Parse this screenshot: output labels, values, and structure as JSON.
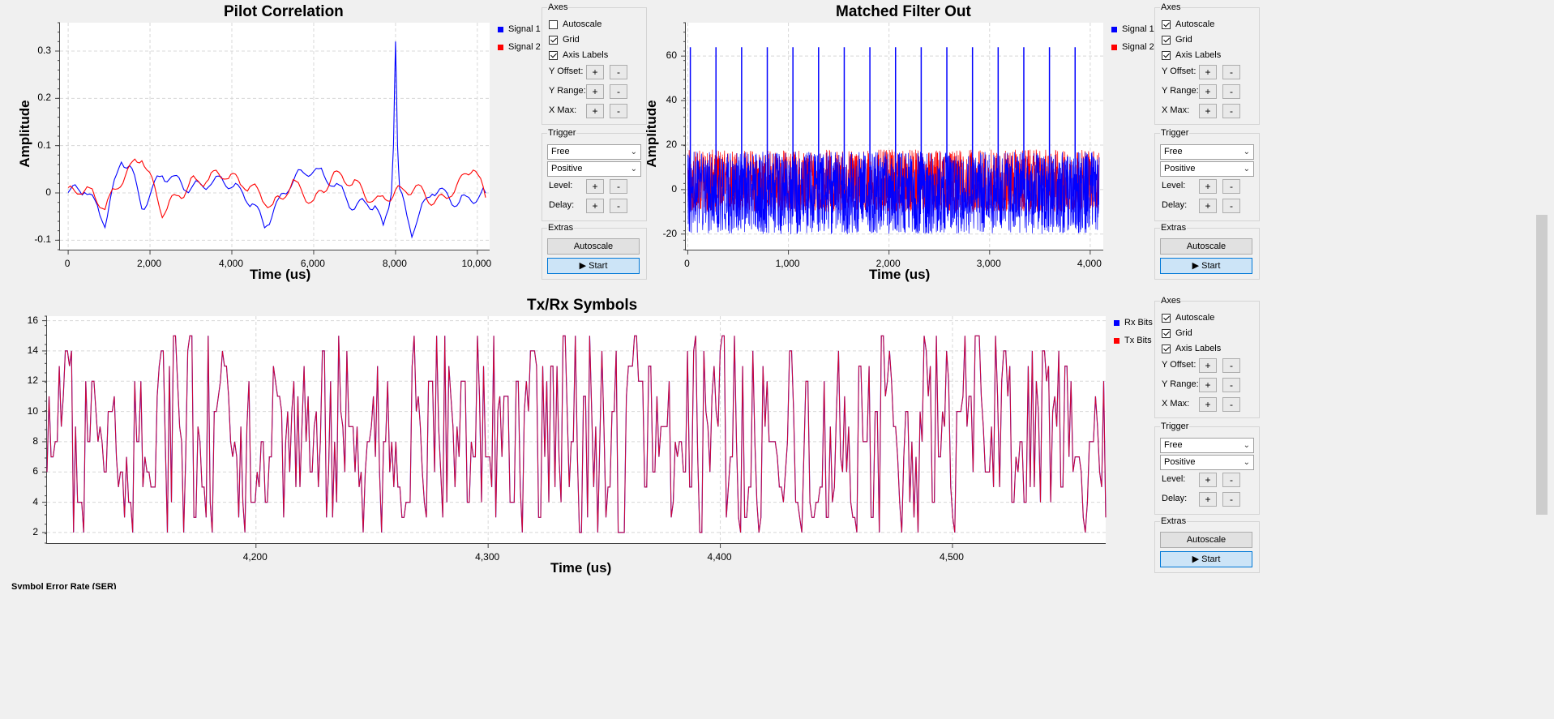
{
  "colors": {
    "signal1": "#0000ff",
    "signal2": "#ff0000",
    "grid": "#d8d8d8"
  },
  "plots": [
    {
      "title": "Pilot Correlation",
      "xlabel": "Time (us)",
      "ylabel": "Amplitude",
      "xticks": [
        "0",
        "2,000",
        "4,000",
        "6,000",
        "8,000",
        "10,000"
      ],
      "yticks": [
        "0.3",
        "0.2",
        "0.1",
        "0",
        "-0.1"
      ],
      "legend": [
        "Signal 1",
        "Signal 2"
      ]
    },
    {
      "title": "Matched Filter Out",
      "xlabel": "Time (us)",
      "ylabel": "Amplitude",
      "xticks": [
        "0",
        "1,000",
        "2,000",
        "3,000",
        "4,000"
      ],
      "yticks": [
        "60",
        "40",
        "20",
        "0",
        "-20"
      ],
      "legend": [
        "Signal 1",
        "Signal 2"
      ]
    },
    {
      "title": "Tx/Rx Symbols",
      "xlabel": "Time (us)",
      "ylabel": "",
      "xticks": [
        "4,200",
        "4,300",
        "4,400",
        "4,500"
      ],
      "yticks": [
        "16",
        "14",
        "12",
        "10",
        "8",
        "6",
        "4",
        "2"
      ],
      "legend": [
        "Rx Bits",
        "Tx Bits"
      ]
    }
  ],
  "controls": [
    {
      "axes_title": "Axes",
      "autoscale": "Autoscale",
      "autoscale_checked": false,
      "grid": "Grid",
      "grid_checked": true,
      "axis_labels": "Axis Labels",
      "axis_labels_checked": true,
      "y_offset": "Y Offset:",
      "y_range": "Y Range:",
      "x_max": "X Max:",
      "plus": "+",
      "minus": "-",
      "trigger_title": "Trigger",
      "trigger_mode": "Free",
      "trigger_slope": "Positive",
      "level": "Level:",
      "delay": "Delay:",
      "extras_title": "Extras",
      "autoscale_button": "Autoscale",
      "start_button": "Start"
    },
    {
      "axes_title": "Axes",
      "autoscale": "Autoscale",
      "autoscale_checked": true,
      "grid": "Grid",
      "grid_checked": true,
      "axis_labels": "Axis Labels",
      "axis_labels_checked": true,
      "y_offset": "Y Offset:",
      "y_range": "Y Range:",
      "x_max": "X Max:",
      "plus": "+",
      "minus": "-",
      "trigger_title": "Trigger",
      "trigger_mode": "Free",
      "trigger_slope": "Positive",
      "level": "Level:",
      "delay": "Delay:",
      "extras_title": "Extras",
      "autoscale_button": "Autoscale",
      "start_button": "Start"
    },
    {
      "axes_title": "Axes",
      "autoscale": "Autoscale",
      "autoscale_checked": true,
      "grid": "Grid",
      "grid_checked": true,
      "axis_labels": "Axis Labels",
      "axis_labels_checked": true,
      "y_offset": "Y Offset:",
      "y_range": "Y Range:",
      "x_max": "X Max:",
      "plus": "+",
      "minus": "-",
      "trigger_title": "Trigger",
      "trigger_mode": "Free",
      "trigger_slope": "Positive",
      "level": "Level:",
      "delay": "Delay:",
      "extras_title": "Extras",
      "autoscale_button": "Autoscale",
      "start_button": "Start"
    }
  ],
  "footer_label": "Symbol Error Rate (SER)",
  "chart_data": [
    {
      "type": "line",
      "title": "Pilot Correlation",
      "xlabel": "Time (us)",
      "ylabel": "Amplitude",
      "xlim": [
        -200,
        10300
      ],
      "ylim": [
        -0.12,
        0.36
      ],
      "grid": true,
      "legend_position": "right",
      "series": [
        {
          "name": "Signal 1",
          "color": "#0000ff",
          "x": [
            0,
            400,
            900,
            1300,
            1500,
            1800,
            2300,
            3000,
            3800,
            4500,
            4800,
            5500,
            6000,
            6500,
            7000,
            7500,
            7700,
            7900,
            7950,
            8000,
            8050,
            8100,
            8400,
            8900,
            9500,
            10200
          ],
          "y": [
            0,
            0.01,
            -0.06,
            0.07,
            0.06,
            -0.03,
            0.04,
            0.01,
            0.03,
            -0.02,
            -0.07,
            0.03,
            0.05,
            0.02,
            -0.03,
            -0.02,
            -0.08,
            0.0,
            0.1,
            0.32,
            0.1,
            0.0,
            -0.08,
            0.01,
            -0.02,
            0.0
          ]
        },
        {
          "name": "Signal 2",
          "color": "#ff0000",
          "x": [
            0,
            400,
            900,
            1400,
            1800,
            2300,
            3000,
            3800,
            4500,
            5000,
            5500,
            6000,
            6500,
            7000,
            7500,
            8000,
            8500,
            9000,
            9500,
            9900,
            10200
          ],
          "y": [
            0,
            0.01,
            -0.03,
            0.04,
            0.08,
            -0.04,
            0.02,
            0.04,
            0.01,
            -0.03,
            0.02,
            -0.02,
            0.04,
            0.02,
            -0.02,
            0.0,
            0.01,
            -0.02,
            0.01,
            0.06,
            -0.01
          ]
        }
      ]
    },
    {
      "type": "line",
      "title": "Matched Filter Out",
      "xlabel": "Time (us)",
      "ylabel": "Amplitude",
      "xlim": [
        -20,
        4130
      ],
      "ylim": [
        -27,
        75
      ],
      "grid": true,
      "legend_position": "right",
      "series": [
        {
          "name": "Signal 1",
          "color": "#0000ff",
          "peak_x": [
            25,
            280,
            535,
            790,
            1045,
            1300,
            1555,
            1810,
            2065,
            2320,
            2575,
            2830,
            3085,
            3340,
            3595,
            3850
          ],
          "peak_y": [
            64,
            64,
            64,
            64,
            64,
            64,
            64,
            64,
            64,
            64,
            64,
            64,
            64,
            64,
            64,
            64
          ],
          "noise_range": [
            -20,
            17
          ]
        },
        {
          "name": "Signal 2",
          "color": "#ff0000",
          "noise_range": [
            -10,
            18
          ]
        }
      ]
    },
    {
      "type": "line",
      "title": "Tx/Rx Symbols",
      "xlabel": "Time (us)",
      "ylabel": "",
      "xlim": [
        4110,
        4566
      ],
      "ylim": [
        1.3,
        16.3
      ],
      "grid": true,
      "legend_position": "right",
      "series": [
        {
          "name": "Rx Bits",
          "color": "#0000ff",
          "values_range": [
            2,
            15
          ]
        },
        {
          "name": "Tx Bits",
          "color": "#ff0000",
          "values_range": [
            2,
            15
          ]
        }
      ]
    }
  ]
}
